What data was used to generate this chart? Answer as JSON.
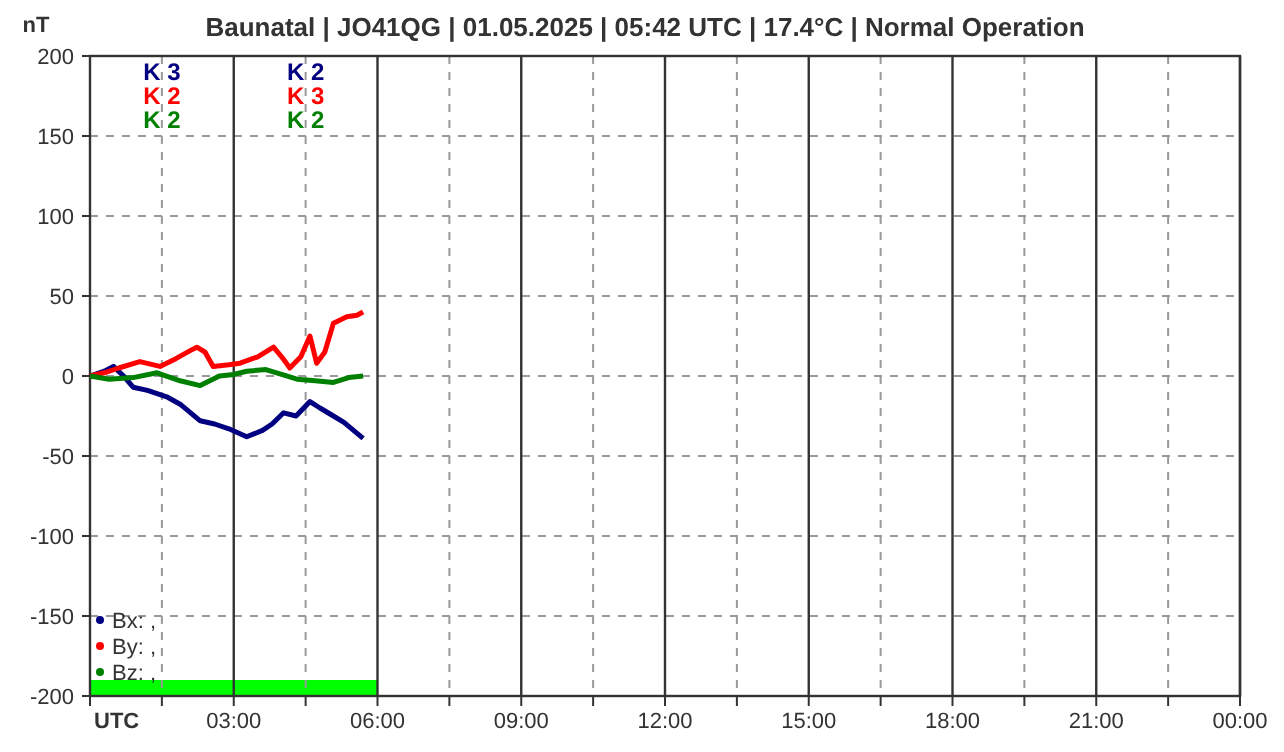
{
  "chart_data": {
    "type": "line",
    "title": "Baunatal | JO41QG | 01.05.2025 | 05:42 UTC | 17.4°C | Normal Operation",
    "ylabel": "nT",
    "xlabel": "UTC",
    "xlim": [
      0,
      24
    ],
    "ylim": [
      -200,
      200
    ],
    "xticks": [
      {
        "value": 0,
        "label": null
      },
      {
        "value": 1.5,
        "label": null
      },
      {
        "value": 3,
        "label": "03:00"
      },
      {
        "value": 4.5,
        "label": null
      },
      {
        "value": 6,
        "label": "06:00"
      },
      {
        "value": 7.5,
        "label": null
      },
      {
        "value": 9,
        "label": "09:00"
      },
      {
        "value": 10.5,
        "label": null
      },
      {
        "value": 12,
        "label": "12:00"
      },
      {
        "value": 13.5,
        "label": null
      },
      {
        "value": 15,
        "label": "15:00"
      },
      {
        "value": 16.5,
        "label": null
      },
      {
        "value": 18,
        "label": "18:00"
      },
      {
        "value": 19.5,
        "label": null
      },
      {
        "value": 21,
        "label": "21:00"
      },
      {
        "value": 22.5,
        "label": null
      },
      {
        "value": 24,
        "label": "00:00"
      }
    ],
    "yticks": [
      -200,
      -150,
      -100,
      -50,
      0,
      50,
      100,
      150,
      200
    ],
    "grid": true,
    "legend": "bottom left",
    "line_style": "solid",
    "series": [
      {
        "name": "Bx: ,",
        "color": "#000080",
        "x": [
          0,
          0.3,
          0.49,
          0.7,
          0.9,
          1.2,
          1.6,
          1.9,
          2.3,
          2.6,
          2.9,
          3.27,
          3.6,
          3.8,
          4.04,
          4.3,
          4.59,
          4.8,
          5.08,
          5.3,
          5.5,
          5.7
        ],
        "values": [
          0,
          3,
          6,
          0,
          -7,
          -9,
          -13,
          -18,
          -28,
          -30,
          -33,
          -38,
          -34,
          -30,
          -23,
          -25,
          -16,
          -20,
          -25,
          -29,
          -34,
          -39
        ]
      },
      {
        "name": "By: ,",
        "color": "#ff0000",
        "x": [
          0,
          0.3,
          0.6,
          1.04,
          1.46,
          1.8,
          2.1,
          2.23,
          2.4,
          2.57,
          2.9,
          3.13,
          3.5,
          3.83,
          4.0,
          4.17,
          4.4,
          4.59,
          4.73,
          4.9,
          5.08,
          5.36,
          5.57,
          5.7
        ],
        "values": [
          0,
          2,
          5,
          9,
          6,
          11,
          16,
          18,
          15,
          6,
          7,
          8,
          12,
          18,
          12,
          5,
          12,
          25,
          8,
          15,
          33,
          37,
          38,
          40
        ]
      },
      {
        "name": "Bz: ,",
        "color": "#008000",
        "x": [
          0,
          0.4,
          0.9,
          1.4,
          1.88,
          2.3,
          2.7,
          3.0,
          3.27,
          3.67,
          4.0,
          4.32,
          4.7,
          5.08,
          5.4,
          5.7
        ],
        "values": [
          0,
          -2,
          -1,
          2,
          -3,
          -6,
          0,
          1,
          3,
          4,
          1,
          -2,
          -3,
          -4,
          -1,
          0
        ]
      }
    ],
    "annotations": [
      "K 3",
      "K 2",
      "K 2",
      "K 2",
      "K 3",
      "K 2"
    ]
  }
}
